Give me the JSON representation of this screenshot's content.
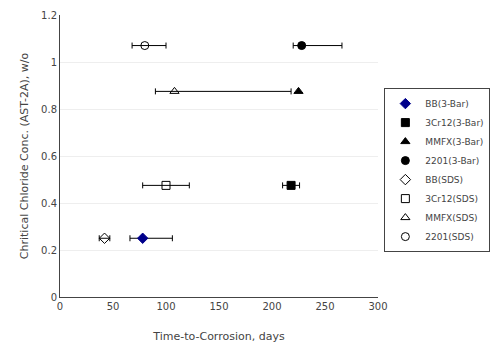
{
  "chart_data": {
    "type": "scatter",
    "xlabel": "Time-to-Corrosion, days",
    "ylabel": "Chritical Chloride Conc. (AST-2A), w/o",
    "xlim": [
      0,
      300
    ],
    "ylim": [
      0.0,
      1.2
    ],
    "xticks": [
      0,
      50,
      100,
      150,
      200,
      250,
      300
    ],
    "yticks": [
      0.0,
      0.2,
      0.4,
      0.6,
      0.8,
      1.0,
      1.2
    ],
    "grid": true,
    "legend": "right",
    "series": [
      {
        "name": "BB(3-Bar)",
        "x": [
          78
        ],
        "values": [
          0.25
        ],
        "xerr_lo": [
          12
        ],
        "xerr_hi": [
          28
        ],
        "marker": "diamond",
        "color": "#00008B"
      },
      {
        "name": "3Cr12(3-Bar)",
        "x": [
          218
        ],
        "values": [
          0.475
        ],
        "xerr_lo": [
          8
        ],
        "xerr_hi": [
          8
        ],
        "marker": "square",
        "color": "#000000"
      },
      {
        "name": "MMFX(3-Bar)",
        "x": [
          225
        ],
        "values": [
          0.875
        ],
        "marker": "triangle-up",
        "color": "#000000"
      },
      {
        "name": "2201(3-Bar)",
        "x": [
          228
        ],
        "values": [
          1.07
        ],
        "xerr_lo": [
          8
        ],
        "xerr_hi": [
          38
        ],
        "marker": "circle",
        "color": "#000000"
      },
      {
        "name": "BB(SDS)",
        "x": [
          42
        ],
        "values": [
          0.25
        ],
        "xerr_lo": [
          5
        ],
        "xerr_hi": [
          5
        ],
        "marker": "diamond-open",
        "color": "#000000"
      },
      {
        "name": "3Cr12(SDS)",
        "x": [
          100
        ],
        "values": [
          0.475
        ],
        "xerr_lo": [
          22
        ],
        "xerr_hi": [
          22
        ],
        "marker": "square-open",
        "color": "#000000"
      },
      {
        "name": "MMFX(SDS)",
        "x": [
          108
        ],
        "values": [
          0.875
        ],
        "xerr_lo": [
          18
        ],
        "xerr_hi": [
          110
        ],
        "marker": "triangle-up-open",
        "color": "#000000"
      },
      {
        "name": "2201(SDS)",
        "x": [
          80
        ],
        "values": [
          1.07
        ],
        "xerr_lo": [
          12
        ],
        "xerr_hi": [
          20
        ],
        "marker": "circle-open",
        "color": "#000000"
      }
    ]
  }
}
